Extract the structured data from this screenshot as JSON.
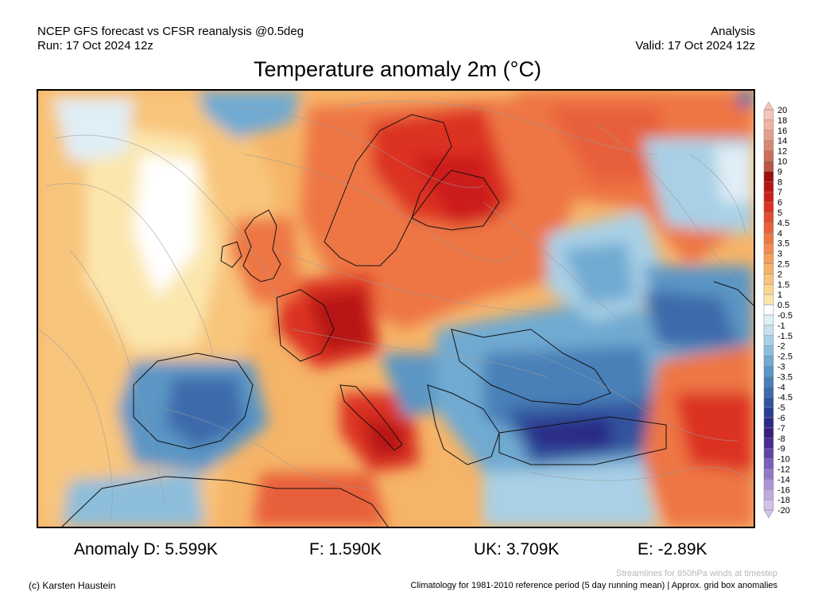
{
  "header": {
    "left_line1": "NCEP GFS forecast vs CFSR reanalysis @0.5deg",
    "left_line2": "Run: 17 Oct 2024 12z",
    "right_line1": "Analysis",
    "right_line2": "Valid: 17 Oct 2024 12z"
  },
  "title": "Temperature anomaly 2m (°C)",
  "colorbar": {
    "labels": [
      "20",
      "18",
      "16",
      "14",
      "12",
      "10",
      "9",
      "8",
      "7",
      "6",
      "5",
      "4.5",
      "4",
      "3.5",
      "3",
      "2.5",
      "2",
      "1.5",
      "1",
      "0.5",
      "-0.5",
      "-1",
      "-1.5",
      "-2",
      "-2.5",
      "-3",
      "-3.5",
      "-4",
      "-4.5",
      "-5",
      "-6",
      "-7",
      "-8",
      "-9",
      "-10",
      "-12",
      "-14",
      "-16",
      "-18",
      "-20"
    ],
    "colors": [
      "#f4c4b8",
      "#eeb3a3",
      "#e39f8c",
      "#d88873",
      "#c9705b",
      "#b85743",
      "#9c0f0f",
      "#b71414",
      "#cd1f1b",
      "#dc3224",
      "#e34c2d",
      "#e8613a",
      "#ee7644",
      "#f18b4f",
      "#f4a05c",
      "#f6b468",
      "#f8c57b",
      "#fad691",
      "#fbe6ad",
      "#ffffff",
      "#e0eef6",
      "#c6e1ef",
      "#a9d0e6",
      "#8cbedc",
      "#71aad1",
      "#5b96c5",
      "#4a80b8",
      "#3d6aab",
      "#32539e",
      "#2a3e91",
      "#2b2a86",
      "#35207e",
      "#4a2a90",
      "#6343a6",
      "#7b5fba",
      "#9479c8",
      "#ab93d5",
      "#c0aadf",
      "#d3c1e9"
    ]
  },
  "stats": {
    "d": "Anomaly D: 5.599K",
    "f": "F: 1.590K",
    "uk": "UK: 3.709K",
    "e": "E: -2.89K"
  },
  "footer": {
    "streamlines_note": "Streamlines for 850hPa winds at timestep",
    "copyright": "(c) Karsten Haustein",
    "climatology_note": "Climatology for 1981-2010 reference period (5 day running mean) | Approx. grid box anomalies"
  }
}
